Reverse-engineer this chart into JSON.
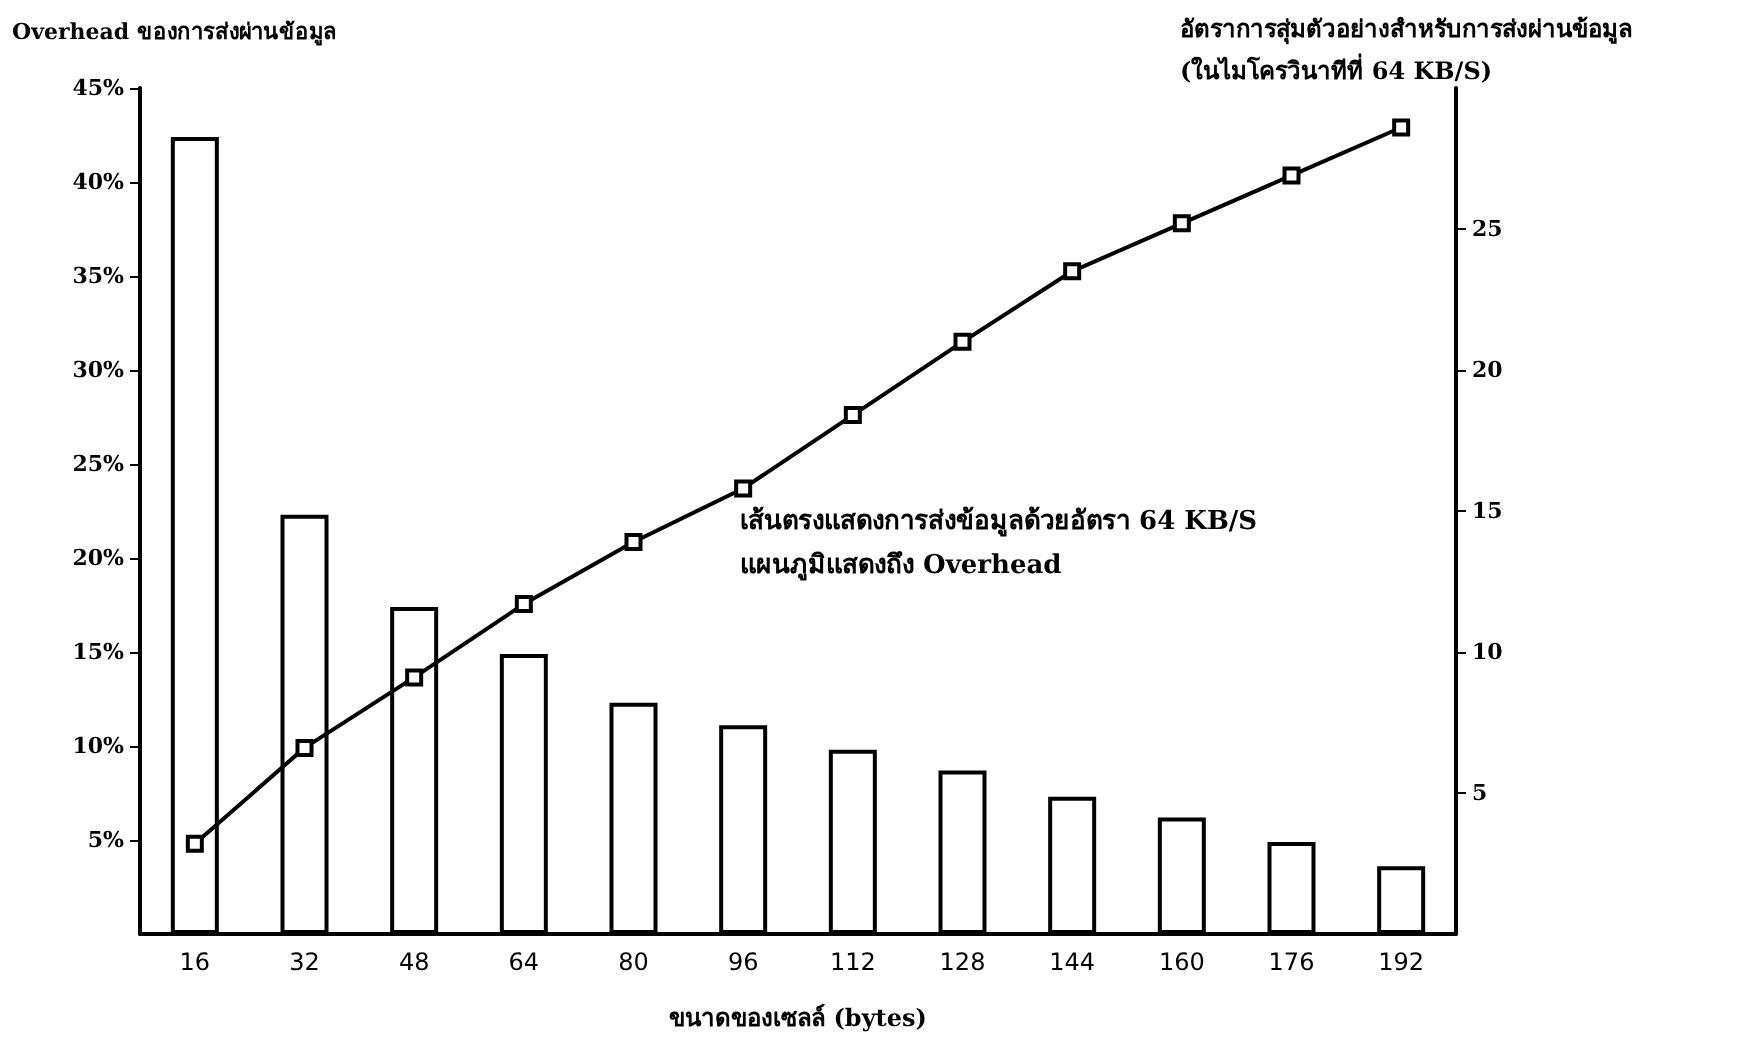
{
  "chart_data": {
    "type": "bar",
    "ylabel": "Overhead ของการส่งผ่านข้อมูล",
    "xlabel": "ขนาดของเซลล์ (bytes)",
    "y2label": "อัตราการสุ่มตัวอย่างสำหรับการส่งผ่านข้อมูล\n(ในไมโครวินาทีที่ 64 KB/S)",
    "annotations": [
      "เส้นตรงแสดงการส่งข้อมูลด้วยอัตรา 64 KB/S\nแผนภูมิแสดงถึง Overhead"
    ],
    "categories": [
      "16",
      "32",
      "48",
      "64",
      "80",
      "96",
      "112",
      "128",
      "144",
      "160",
      "176",
      "192"
    ],
    "series": [
      {
        "color": "#ffffff",
        "values": [
          42.4,
          22.3,
          17.4,
          14.9,
          12.3,
          11.1,
          9.8,
          8.7,
          7.3,
          6.2,
          4.9,
          3.6
        ]
      },
      {
        "type": "line",
        "axis": "y2",
        "color": "#000000",
        "marker": "square",
        "values": [
          3.2,
          6.6,
          9.1,
          11.7,
          13.9,
          15.8,
          18.4,
          21.0,
          23.5,
          25.2,
          26.9,
          28.6
        ]
      }
    ],
    "ylim": [
      0,
      45
    ],
    "yticks": [
      {
        "value": 5,
        "label": "5%"
      },
      {
        "value": 10,
        "label": "10%"
      },
      {
        "value": 15,
        "label": "15%"
      },
      {
        "value": 20,
        "label": "20%"
      },
      {
        "value": 25,
        "label": "25%"
      },
      {
        "value": 30,
        "label": "30%"
      },
      {
        "value": 35,
        "label": "35%"
      },
      {
        "value": 40,
        "label": "40%"
      },
      {
        "value": 45,
        "label": "45%"
      }
    ],
    "y2lim": [
      0,
      30
    ],
    "y2ticks": [
      5,
      10,
      15,
      20,
      25
    ],
    "grid": false
  }
}
